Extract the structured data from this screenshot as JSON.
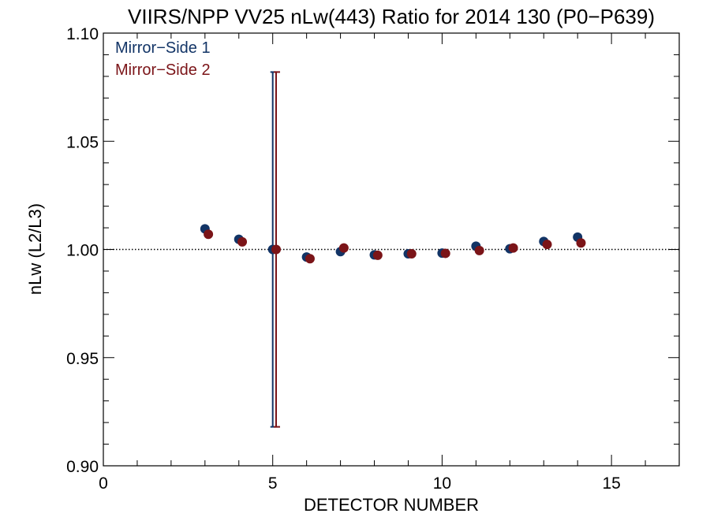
{
  "chart_data": {
    "type": "scatter",
    "title": "VIIRS/NPP VV25 nLw(443) Ratio for 2014 130 (P0−P639)",
    "xlabel": "DETECTOR NUMBER",
    "ylabel": "nLw (L2/L3)",
    "xlim": [
      0,
      17
    ],
    "ylim": [
      0.9,
      1.1
    ],
    "x_ticks": [
      0,
      5,
      10,
      15
    ],
    "x_tick_labels": [
      "0",
      "5",
      "10",
      "15"
    ],
    "y_ticks": [
      0.9,
      0.95,
      1.0,
      1.05,
      1.1
    ],
    "y_tick_labels": [
      "0.90",
      "0.95",
      "1.00",
      "1.05",
      "1.10"
    ],
    "reference_line": 1.0,
    "legend_position": "top-left",
    "series": [
      {
        "name": "Mirror−Side 1",
        "color": "#123466",
        "x": [
          3,
          4,
          5,
          6,
          7,
          8,
          9,
          10,
          11,
          12,
          13,
          14
        ],
        "y": [
          1.0095,
          1.0047,
          1.0,
          0.9965,
          0.999,
          0.9975,
          0.998,
          0.9983,
          1.0015,
          1.0003,
          1.0037,
          1.0057
        ],
        "error_bars": [
          {
            "x": 5,
            "low": 0.918,
            "high": 1.082
          }
        ]
      },
      {
        "name": "Mirror−Side 2",
        "color": "#7b1418",
        "x": [
          3.1,
          4.1,
          5.1,
          6.1,
          7.1,
          8.1,
          9.1,
          10.1,
          11.1,
          12.1,
          13.1,
          14.1
        ],
        "y": [
          1.007,
          1.0035,
          1.0,
          0.9957,
          1.0007,
          0.9973,
          0.998,
          0.9982,
          0.9995,
          1.0007,
          1.0023,
          1.003
        ],
        "error_bars": [
          {
            "x": 5.1,
            "low": 0.918,
            "high": 1.082
          }
        ]
      }
    ]
  }
}
